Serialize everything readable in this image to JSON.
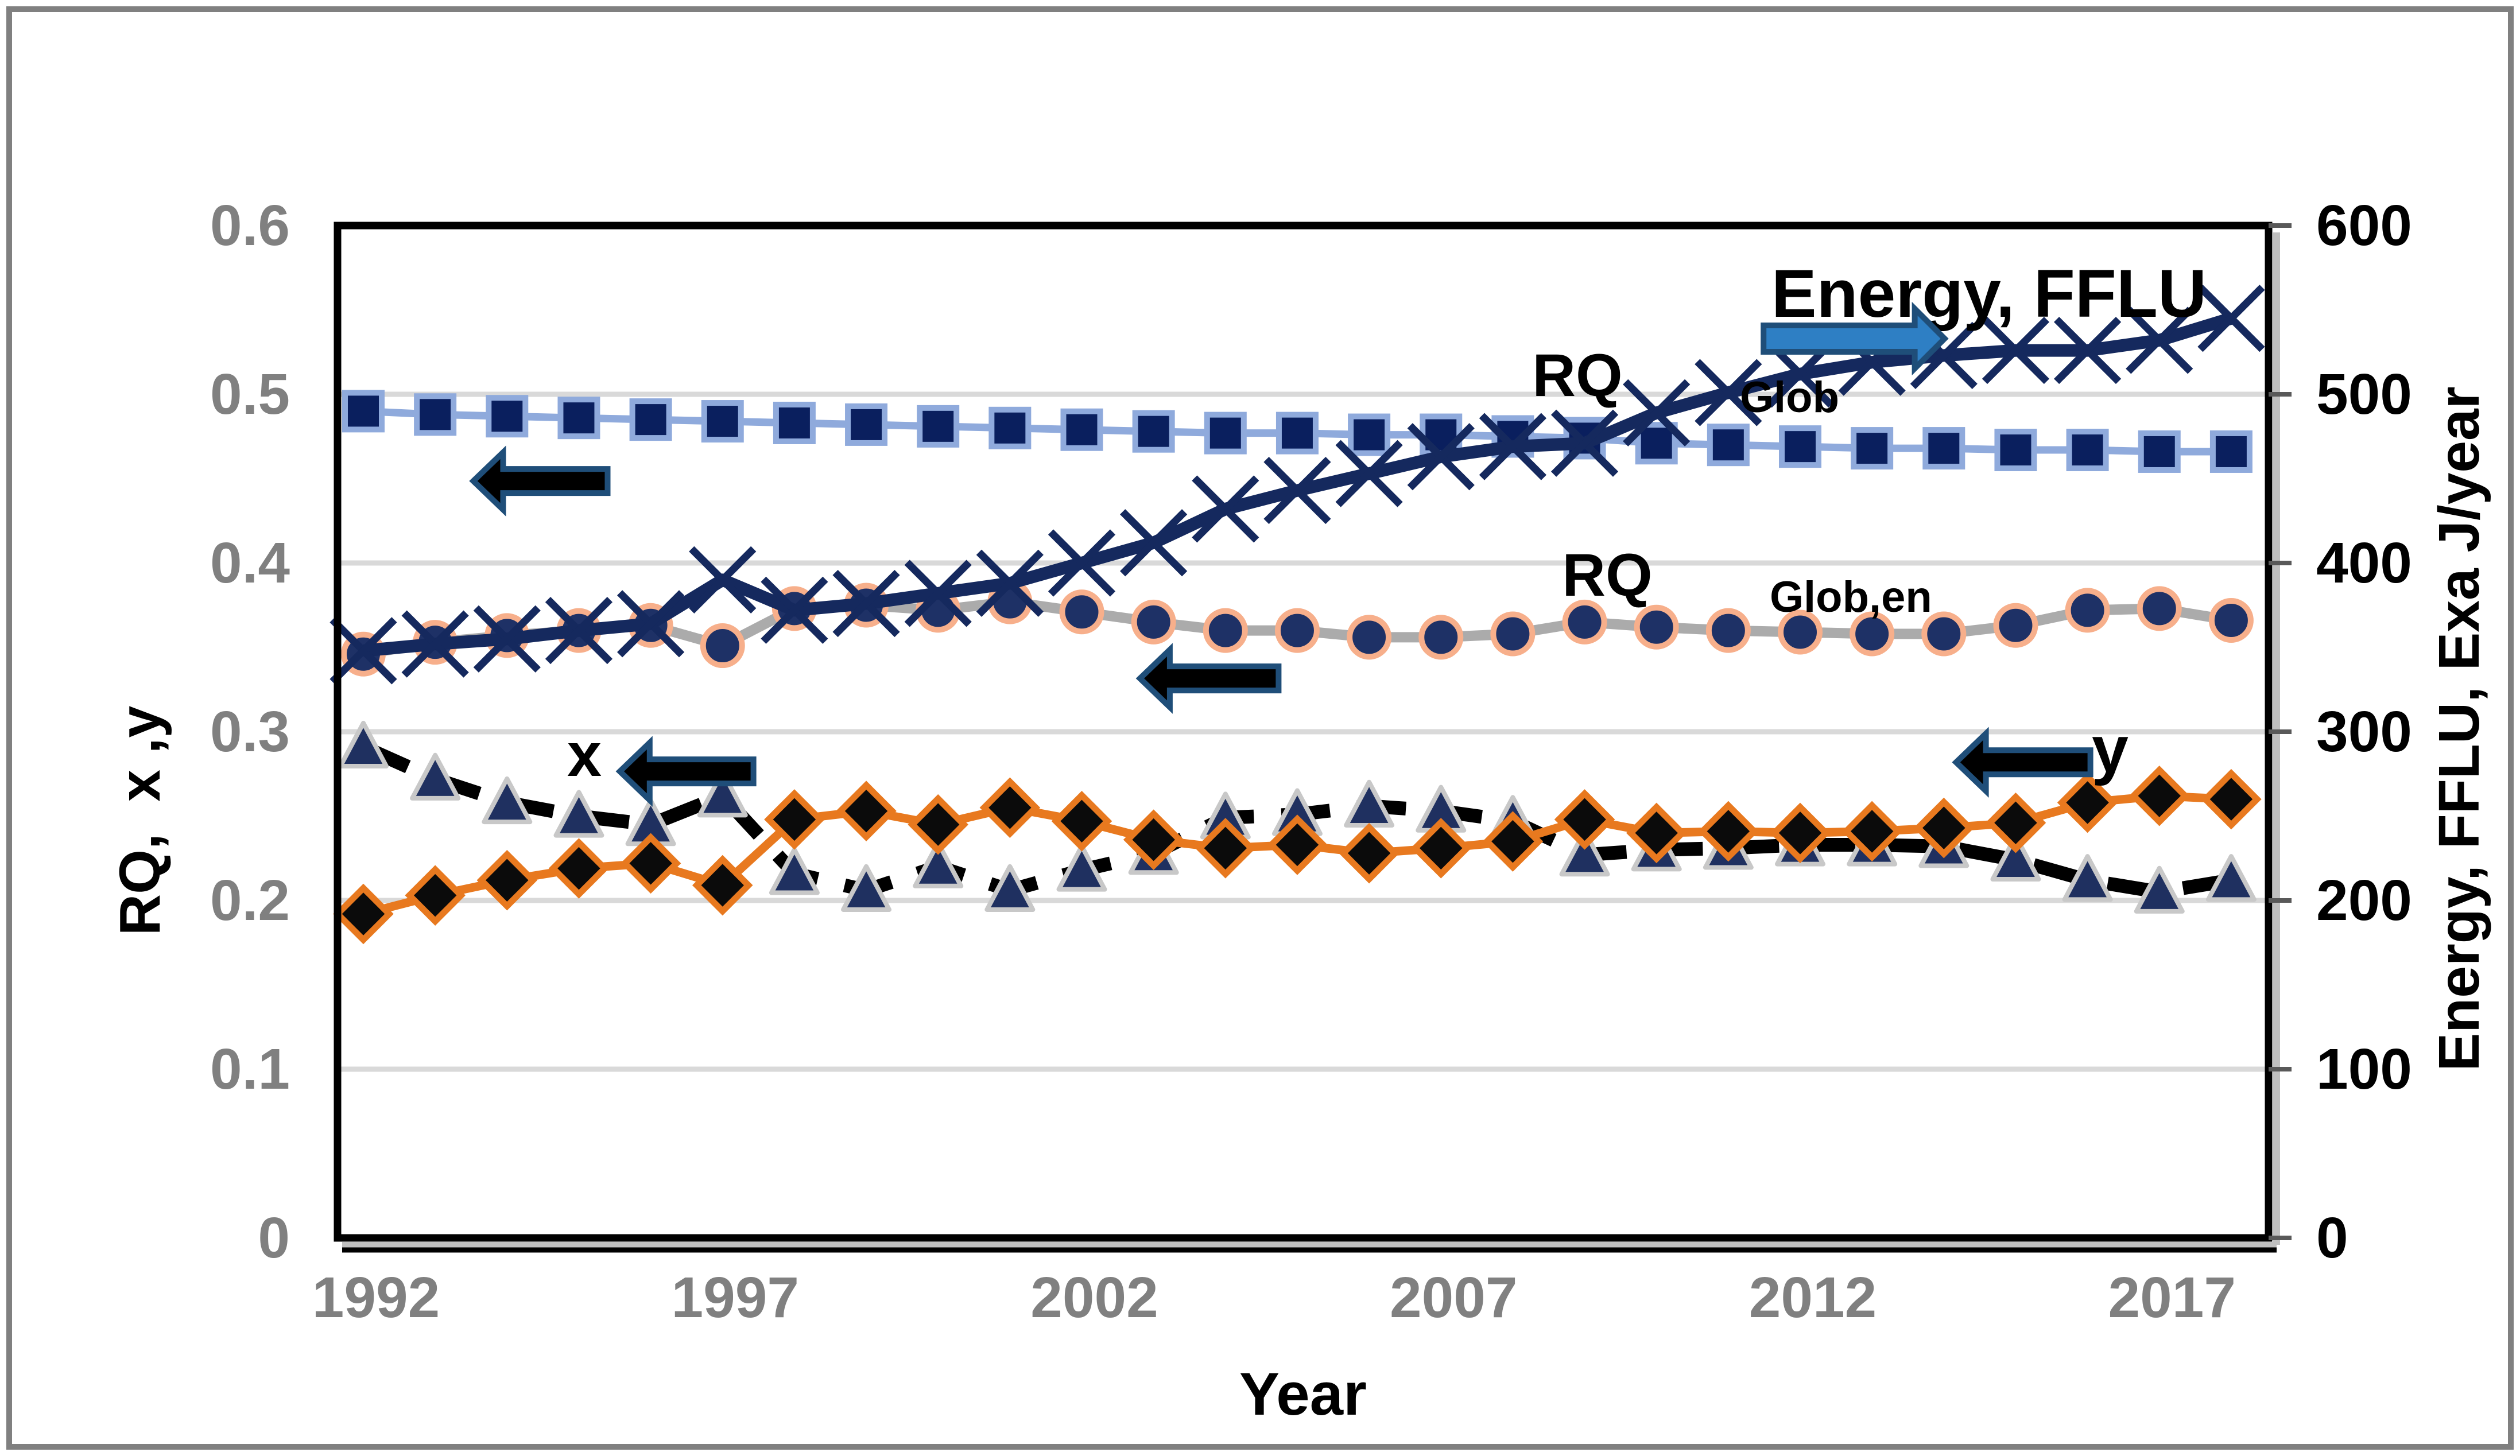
{
  "figure": {
    "background": "#FFFFFF",
    "outer_border_color": "#808080"
  },
  "axes": {
    "x": {
      "title": "Year",
      "tick_labels": [
        "1992",
        "1997",
        "2002",
        "2007",
        "2012",
        "2017"
      ],
      "tick_years": [
        1992,
        1997,
        2002,
        2007,
        2012,
        2017
      ],
      "tick_label_color": "#808080",
      "title_color": "#000000"
    },
    "y_left": {
      "title": "RQ,  x ,y",
      "tick_labels": [
        "0",
        "0.1",
        "0.2",
        "0.3",
        "0.4",
        "0.5",
        "0.6"
      ],
      "tick_values": [
        0,
        0.1,
        0.2,
        0.3,
        0.4,
        0.5,
        0.6
      ],
      "range": [
        0,
        0.6
      ],
      "tick_label_color": "#808080"
    },
    "y_right": {
      "title": "Energy, FFLU, Exa J/year",
      "tick_labels": [
        "0",
        "100",
        "200",
        "300",
        "400",
        "500",
        "600"
      ],
      "tick_values": [
        0,
        100,
        200,
        300,
        400,
        500,
        600
      ],
      "range": [
        0,
        600
      ],
      "tick_label_color": "#000000"
    }
  },
  "annotations_text": {
    "rq_glob": {
      "text": "RQ",
      "subscript": "Glob"
    },
    "rq_glob_en": {
      "text": "RQ",
      "subscript": "Glob,en"
    },
    "energy_fflu": {
      "text": "Energy, FFLU"
    },
    "x_series": {
      "text": "x"
    },
    "y_series": {
      "text": "y"
    }
  },
  "chart_data": {
    "type": "line",
    "title": "",
    "xlabel": "Year",
    "ylabel_left": "RQ,  x ,y",
    "ylabel_right": "Energy, FFLU, Exa J/year",
    "grid": true,
    "x_range": [
      1991.6,
      2018.6
    ],
    "y_left_range": [
      0,
      0.6
    ],
    "y_right_range": [
      0,
      600
    ],
    "x": [
      1992,
      1993,
      1994,
      1995,
      1996,
      1997,
      1998,
      1999,
      2000,
      2001,
      2002,
      2003,
      2004,
      2005,
      2006,
      2007,
      2008,
      2009,
      2010,
      2011,
      2012,
      2013,
      2014,
      2015,
      2016,
      2017,
      2018
    ],
    "series": [
      {
        "name": "RQ_Glob",
        "axis": "left",
        "marker": "square",
        "marker_size": 64,
        "marker_fill": "#0A1F5E",
        "marker_stroke": "#8FAADC",
        "line_color": "#8FAADC",
        "line_width": 13,
        "values": [
          0.49,
          0.488,
          0.487,
          0.486,
          0.485,
          0.484,
          0.483,
          0.482,
          0.481,
          0.48,
          0.479,
          0.478,
          0.477,
          0.477,
          0.476,
          0.476,
          0.475,
          0.474,
          0.471,
          0.47,
          0.469,
          0.468,
          0.468,
          0.467,
          0.467,
          0.466,
          0.466
        ]
      },
      {
        "name": "RQ_Glob,en",
        "axis": "left",
        "marker": "circle",
        "marker_size": 68,
        "marker_fill": "#1E3166",
        "marker_stroke": "#F7AF8B",
        "line_color": "#ABABAB",
        "line_width": 18,
        "values": [
          0.346,
          0.353,
          0.357,
          0.36,
          0.363,
          0.351,
          0.373,
          0.375,
          0.372,
          0.377,
          0.371,
          0.365,
          0.36,
          0.36,
          0.356,
          0.356,
          0.358,
          0.365,
          0.362,
          0.36,
          0.359,
          0.358,
          0.358,
          0.363,
          0.372,
          0.373,
          0.366
        ]
      },
      {
        "name": "x",
        "axis": "left",
        "marker": "triangle",
        "marker_size": 80,
        "marker_fill": "#1F3060",
        "marker_stroke": "#C8C8C8",
        "line_color": "#000000",
        "line_width": 24,
        "line_dash": "85 48",
        "values": [
          0.291,
          0.272,
          0.258,
          0.25,
          0.245,
          0.262,
          0.216,
          0.206,
          0.22,
          0.206,
          0.218,
          0.228,
          0.249,
          0.251,
          0.256,
          0.253,
          0.247,
          0.227,
          0.23,
          0.231,
          0.233,
          0.233,
          0.232,
          0.224,
          0.212,
          0.205,
          0.212
        ]
      },
      {
        "name": "y",
        "axis": "left",
        "marker": "diamond",
        "marker_size": 90,
        "marker_fill": "#0B0B0B",
        "marker_stroke": "#E8791F",
        "line_color": "#E8791F",
        "line_width": 15,
        "values": [
          0.192,
          0.203,
          0.212,
          0.219,
          0.222,
          0.209,
          0.248,
          0.253,
          0.245,
          0.255,
          0.247,
          0.236,
          0.231,
          0.233,
          0.228,
          0.231,
          0.235,
          0.248,
          0.24,
          0.241,
          0.24,
          0.241,
          0.243,
          0.246,
          0.258,
          0.262,
          0.26
        ]
      },
      {
        "name": "Energy, FFLU",
        "axis": "right",
        "marker": "x",
        "marker_size": 108,
        "marker_fill": "none",
        "marker_stroke": "#15295E",
        "line_color": "#15295E",
        "line_width": 22,
        "values": [
          348,
          352,
          355,
          360,
          364,
          390,
          372,
          376,
          382,
          388,
          400,
          412,
          432,
          443,
          453,
          463,
          469,
          471,
          489,
          501,
          512,
          519,
          523,
          526,
          526,
          532,
          545
        ]
      }
    ],
    "arrows": [
      {
        "id": "arrow-rq-glob",
        "direction": "left",
        "fill": "#000000",
        "stroke": "#1F4E79",
        "tip_year": 1993.53,
        "tail_year": 1995.4,
        "value": 0.4486
      },
      {
        "id": "arrow-rq-glob-en",
        "direction": "left",
        "fill": "#000000",
        "stroke": "#1F4E79",
        "tip_year": 2002.81,
        "tail_year": 2004.74,
        "value": 0.3316
      },
      {
        "id": "arrow-x",
        "direction": "left",
        "fill": "#000000",
        "stroke": "#1F4E79",
        "tip_year": 1995.57,
        "tail_year": 1997.43,
        "value": 0.2765
      },
      {
        "id": "arrow-y",
        "direction": "left",
        "fill": "#000000",
        "stroke": "#1F4E79",
        "tip_year": 2014.17,
        "tail_year": 2016.04,
        "value": 0.2819
      },
      {
        "id": "arrow-energy",
        "direction": "right",
        "fill": "#2E7FC4",
        "stroke": "#1F4E79",
        "tip_year": 2014.01,
        "tail_year": 2011.49,
        "value": 0.533
      }
    ],
    "gridline_color": "#D9D9D9",
    "frame_color": "#000000",
    "shadow_color": "#BFBFBF"
  }
}
